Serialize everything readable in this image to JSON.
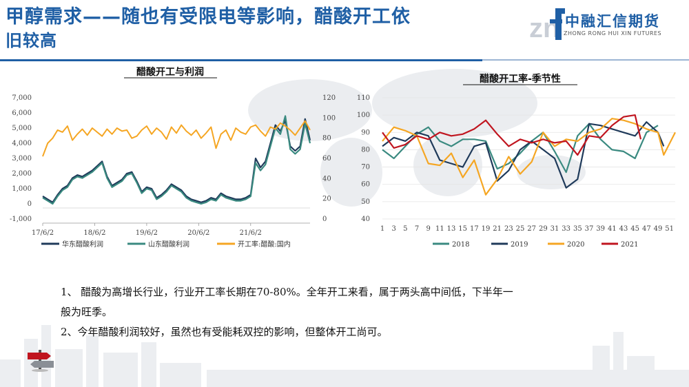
{
  "slide": {
    "title_line1": "甲醇需求——随也有受限电等影响，醋酸开工依",
    "title_line2": "旧较高",
    "logo_cn": "中融汇信期货",
    "logo_en": "ZHONG RONG HUI XIN FUTURES",
    "bullets": [
      "1、 醋酸为高增长行业，行业开工率长期在70-80%。全年开工来看，属于两头高中间低，下半年一",
      "般为旺季。",
      "2、今年醋酸利润较好，虽然也有受能耗双控的影响，但整体开工尚可。"
    ]
  },
  "colors": {
    "title": "#1f5fa5",
    "huadong": "#1f3a5a",
    "shandong": "#3a8a80",
    "kaigong": "#f5a623",
    "y2018": "#3a8a80",
    "y2019": "#1f3a5a",
    "y2020": "#f5a623",
    "y2021": "#c0151f"
  },
  "chart_data": [
    {
      "type": "line",
      "title": "醋酸开工与利润",
      "x_ticks": [
        "17/6/2",
        "18/6/2",
        "19/6/2",
        "20/6/2",
        "21/6/2"
      ],
      "x_range": [
        0,
        54
      ],
      "y_left_ticks": [
        "7,000",
        "6,000",
        "5,000",
        "4,000",
        "3,000",
        "2,000",
        "1,000",
        "0",
        "-1,000"
      ],
      "y_left_range": [
        -1000,
        7000
      ],
      "y_right_ticks": [
        "120",
        "100",
        "80",
        "60",
        "40",
        "20",
        "0"
      ],
      "y_right_range": [
        0,
        120
      ],
      "legend_position": "bottom",
      "series": [
        {
          "name": "华东醋酸利润",
          "axis": "left",
          "x": [
            0,
            1,
            2,
            3,
            4,
            5,
            6,
            7,
            8,
            9,
            10,
            11,
            12,
            13,
            14,
            15,
            16,
            17,
            18,
            19,
            20,
            21,
            22,
            23,
            24,
            25,
            26,
            27,
            28,
            29,
            30,
            31,
            32,
            33,
            34,
            35,
            36,
            37,
            38,
            39,
            40,
            41,
            42,
            43,
            44,
            45,
            46,
            47,
            48,
            49,
            50,
            51,
            52,
            53,
            54
          ],
          "values": [
            500,
            300,
            100,
            600,
            1000,
            1200,
            1700,
            1900,
            1800,
            2000,
            2200,
            2500,
            2800,
            1800,
            1200,
            1400,
            1600,
            2000,
            2100,
            1500,
            800,
            1100,
            1000,
            400,
            600,
            900,
            1300,
            1100,
            900,
            500,
            300,
            200,
            100,
            200,
            400,
            300,
            700,
            500,
            400,
            300,
            300,
            400,
            600,
            3000,
            2400,
            2800,
            4000,
            5200,
            4800,
            5500,
            3800,
            3500,
            3800,
            5600,
            4200
          ]
        },
        {
          "name": "山东醋酸利润",
          "axis": "left",
          "x": [
            0,
            1,
            2,
            3,
            4,
            5,
            6,
            7,
            8,
            9,
            10,
            11,
            12,
            13,
            14,
            15,
            16,
            17,
            18,
            19,
            20,
            21,
            22,
            23,
            24,
            25,
            26,
            27,
            28,
            29,
            30,
            31,
            32,
            33,
            34,
            35,
            36,
            37,
            38,
            39,
            40,
            41,
            42,
            43,
            44,
            45,
            46,
            47,
            48,
            49,
            50,
            51,
            52,
            53,
            54
          ],
          "values": [
            400,
            200,
            0,
            500,
            900,
            1100,
            1600,
            1800,
            1700,
            1900,
            2100,
            2400,
            2700,
            1700,
            1100,
            1300,
            1500,
            1900,
            2000,
            1400,
            700,
            1000,
            900,
            300,
            500,
            800,
            1200,
            1000,
            800,
            400,
            200,
            100,
            0,
            100,
            300,
            200,
            600,
            400,
            300,
            200,
            200,
            300,
            500,
            2700,
            2200,
            2600,
            3800,
            5000,
            4600,
            5800,
            3600,
            3300,
            3600,
            5300,
            4000
          ]
        },
        {
          "name": "开工率:醋酸:国内",
          "axis": "right",
          "x": [
            0,
            1,
            2,
            3,
            4,
            5,
            6,
            7,
            8,
            9,
            10,
            11,
            12,
            13,
            14,
            15,
            16,
            17,
            18,
            19,
            20,
            21,
            22,
            23,
            24,
            25,
            26,
            27,
            28,
            29,
            30,
            31,
            32,
            33,
            34,
            35,
            36,
            37,
            38,
            39,
            40,
            41,
            42,
            43,
            44,
            45,
            46,
            47,
            48,
            49,
            50,
            51,
            52,
            53,
            54
          ],
          "values": [
            62,
            75,
            80,
            88,
            86,
            92,
            78,
            84,
            89,
            83,
            90,
            86,
            82,
            89,
            84,
            90,
            87,
            88,
            80,
            82,
            88,
            92,
            84,
            90,
            86,
            79,
            91,
            85,
            93,
            87,
            83,
            88,
            80,
            85,
            91,
            70,
            84,
            88,
            78,
            90,
            86,
            84,
            91,
            93,
            87,
            82,
            91,
            89,
            95,
            92,
            88,
            83,
            90,
            97,
            88
          ]
        }
      ]
    },
    {
      "type": "line",
      "title": "醋酸开工率-季节性",
      "x_ticks": [
        "1",
        "3",
        "5",
        "7",
        "9",
        "11",
        "13",
        "15",
        "17",
        "19",
        "21",
        "23",
        "25",
        "27",
        "29",
        "31",
        "33",
        "35",
        "37",
        "39",
        "41",
        "43",
        "45",
        "47",
        "49",
        "51"
      ],
      "x_range": [
        1,
        52
      ],
      "y_ticks": [
        "110",
        "100",
        "90",
        "80",
        "70",
        "60",
        "50",
        "40"
      ],
      "y_range": [
        40,
        110
      ],
      "legend_position": "bottom",
      "series": [
        {
          "name": "2018",
          "x": [
            1,
            3,
            5,
            7,
            9,
            11,
            13,
            15,
            17,
            19,
            21,
            23,
            25,
            27,
            29,
            31,
            33,
            35,
            37,
            39,
            41,
            43,
            45,
            47,
            49
          ],
          "values": [
            80,
            75,
            82,
            89,
            93,
            85,
            82,
            86,
            86,
            85,
            69,
            72,
            78,
            85,
            90,
            79,
            67,
            88,
            95,
            86,
            80,
            79,
            75,
            90,
            94
          ]
        },
        {
          "name": "2019",
          "x": [
            1,
            3,
            5,
            7,
            9,
            11,
            13,
            15,
            17,
            19,
            21,
            23,
            25,
            27,
            29,
            31,
            33,
            35,
            37,
            39,
            41,
            43,
            45,
            47,
            49,
            50
          ],
          "values": [
            82,
            87,
            85,
            90,
            88,
            74,
            72,
            70,
            82,
            84,
            62,
            68,
            80,
            85,
            80,
            75,
            58,
            63,
            95,
            94,
            92,
            90,
            88,
            96,
            90,
            82
          ]
        },
        {
          "name": "2020",
          "x": [
            1,
            3,
            5,
            7,
            9,
            11,
            13,
            15,
            17,
            19,
            21,
            23,
            25,
            27,
            29,
            31,
            33,
            35,
            37,
            39,
            41,
            43,
            45,
            47,
            49,
            50,
            52
          ],
          "values": [
            85,
            93,
            91,
            88,
            72,
            71,
            78,
            64,
            74,
            54,
            63,
            76,
            66,
            73,
            90,
            82,
            86,
            85,
            90,
            92,
            98,
            97,
            95,
            92,
            90,
            77,
            90
          ]
        },
        {
          "name": "2021",
          "x": [
            1,
            3,
            5,
            7,
            9,
            11,
            13,
            15,
            17,
            19,
            21,
            23,
            25,
            27,
            29,
            31,
            33,
            35,
            37,
            39,
            41,
            43,
            45,
            46
          ],
          "values": [
            90,
            81,
            83,
            88,
            86,
            90,
            88,
            89,
            92,
            97,
            89,
            82,
            86,
            84,
            86,
            84,
            85,
            77,
            88,
            87,
            94,
            99,
            100,
            86
          ]
        }
      ]
    }
  ]
}
